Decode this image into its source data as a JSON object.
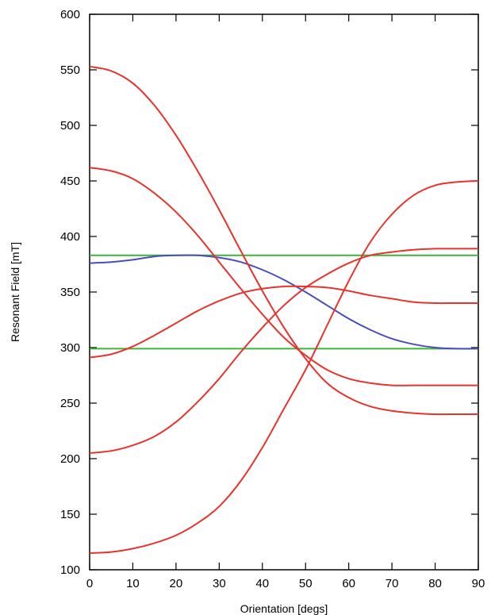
{
  "chart_data": {
    "type": "line",
    "xlabel": "Orientation [degs]",
    "ylabel": "Resonant Field [mT]",
    "xlim": [
      0,
      90
    ],
    "ylim": [
      100,
      600
    ],
    "xticks": [
      0,
      10,
      20,
      30,
      40,
      50,
      60,
      70,
      80,
      90
    ],
    "yticks": [
      100,
      150,
      200,
      250,
      300,
      350,
      400,
      450,
      500,
      550,
      600
    ],
    "grid": false,
    "legend": "none",
    "colors": {
      "red": "#e8322c",
      "blue": "#4a4fb8",
      "green": "#3cb43c"
    },
    "series": [
      {
        "color": "red",
        "x": [
          0,
          5,
          10,
          15,
          20,
          25,
          30,
          35,
          40,
          45,
          50,
          55,
          60,
          65,
          70,
          75,
          80,
          85,
          90
        ],
        "y": [
          553,
          549,
          538,
          518,
          491,
          459,
          424,
          387,
          351,
          318,
          290,
          268,
          255,
          247,
          243,
          241,
          240,
          240,
          240
        ]
      },
      {
        "color": "red",
        "x": [
          0,
          5,
          10,
          15,
          20,
          25,
          30,
          35,
          40,
          45,
          50,
          55,
          60,
          65,
          70,
          75,
          80,
          85,
          90
        ],
        "y": [
          462,
          459,
          452,
          439,
          422,
          401,
          377,
          353,
          330,
          309,
          293,
          280,
          272,
          268,
          266,
          266,
          266,
          266,
          266
        ]
      },
      {
        "color": "red",
        "x": [
          0,
          5,
          10,
          15,
          20,
          25,
          30,
          35,
          40,
          45,
          50,
          55,
          60,
          65,
          70,
          75,
          80,
          85,
          90
        ],
        "y": [
          291,
          294,
          301,
          311,
          322,
          333,
          342,
          349,
          353,
          355,
          355,
          354,
          351,
          347,
          344,
          341,
          340,
          340,
          340
        ]
      },
      {
        "color": "red",
        "x": [
          0,
          5,
          10,
          15,
          20,
          25,
          30,
          35,
          40,
          45,
          50,
          55,
          60,
          65,
          70,
          75,
          80,
          85,
          90
        ],
        "y": [
          205,
          207,
          212,
          220,
          233,
          251,
          272,
          296,
          318,
          338,
          354,
          366,
          376,
          383,
          386,
          388,
          389,
          389,
          389
        ]
      },
      {
        "color": "red",
        "x": [
          0,
          5,
          10,
          15,
          20,
          25,
          30,
          35,
          40,
          45,
          50,
          55,
          60,
          65,
          70,
          75,
          80,
          85,
          90
        ],
        "y": [
          115,
          116,
          119,
          124,
          131,
          142,
          157,
          180,
          210,
          245,
          280,
          320,
          360,
          395,
          420,
          437,
          446,
          449,
          450
        ]
      },
      {
        "color": "blue",
        "x": [
          0,
          5,
          10,
          15,
          20,
          25,
          30,
          35,
          40,
          45,
          50,
          55,
          60,
          65,
          70,
          75,
          80,
          85,
          90
        ],
        "y": [
          376,
          377,
          379,
          382,
          383,
          383,
          381,
          377,
          370,
          361,
          350,
          338,
          326,
          316,
          308,
          303,
          300,
          299,
          299
        ]
      },
      {
        "color": "green",
        "x": [
          0,
          90
        ],
        "y": [
          383,
          383
        ]
      },
      {
        "color": "green",
        "x": [
          0,
          90
        ],
        "y": [
          299,
          299
        ]
      }
    ]
  }
}
